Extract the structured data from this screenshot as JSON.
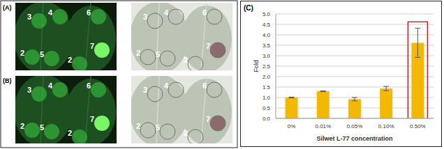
{
  "figure": {
    "panels": [
      {
        "label": "(A)",
        "left_leaf": [
          "3",
          "4",
          "2",
          "5"
        ],
        "right_leaf": [
          "6",
          "2",
          "7"
        ]
      },
      {
        "label": "(B)",
        "left_leaf": [
          "3",
          "4",
          "2",
          "5"
        ],
        "right_leaf": [
          "6",
          "2",
          "7"
        ]
      }
    ],
    "chart_label": "(C)"
  },
  "chart_data": {
    "type": "bar",
    "categories": [
      "0%",
      "0.01%",
      "0.05%",
      "0.10%",
      "0.50%"
    ],
    "values": [
      1.0,
      1.3,
      0.92,
      1.43,
      3.62
    ],
    "errors": [
      0.02,
      0.02,
      0.08,
      0.1,
      0.7
    ],
    "color": "#f5b800",
    "x_label": "Silwet L-77 concentration",
    "y_label": "Fold",
    "ylim": [
      0,
      5
    ],
    "yticks": [
      {
        "value": 0,
        "label": "0.0"
      },
      0.5,
      {
        "value": 1,
        "label": "1.0"
      },
      1.5,
      {
        "value": 2,
        "label": "2.0"
      },
      2.5,
      {
        "value": 3,
        "label": "3.0"
      },
      3.5,
      {
        "value": 4,
        "label": "4.0"
      },
      4.5,
      {
        "value": 5,
        "label": "5.0"
      }
    ],
    "grid": true
  }
}
